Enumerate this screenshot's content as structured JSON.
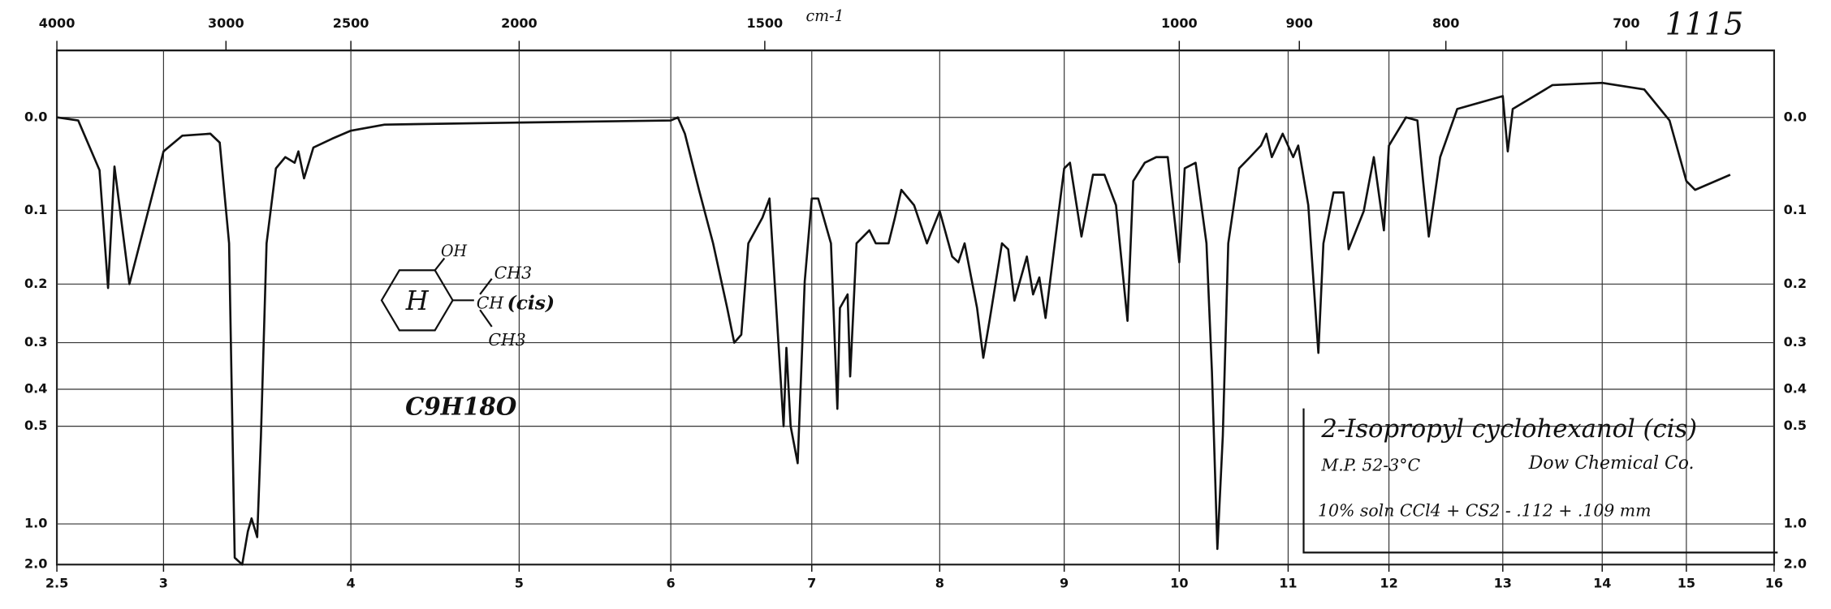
{
  "chart_data": {
    "type": "line",
    "title": "2-Isopropyl cyclohexanol (cis)",
    "annotations": [
      "M.P. 52-3°C",
      "Dow Chemical Co.",
      "10% soln CCl4 + CS2 - .112 + .109 mm",
      "C9H18O",
      "1115"
    ],
    "structure_labels": [
      "H",
      "OH",
      "CH3",
      "CH",
      "(cis)",
      "CH3"
    ],
    "x2label": "cm-1",
    "xlim": [
      2.5,
      16
    ],
    "xticks": [
      2.5,
      3,
      4,
      5,
      6,
      7,
      8,
      9,
      10,
      11,
      12,
      13,
      14,
      15,
      16
    ],
    "x2ticks": [
      4000,
      3000,
      2500,
      2000,
      1500,
      1000,
      900,
      800,
      700
    ],
    "ylim": [
      -0.06,
      2.0
    ],
    "yscale": "absorbance",
    "yticks": [
      {
        "value": 0,
        "label": "0.0"
      },
      0.1,
      0.2,
      0.3,
      0.4,
      0.5,
      {
        "value": 1,
        "label": "1.0"
      },
      {
        "value": 2,
        "label": "2.0"
      }
    ],
    "grid": true,
    "series": [
      {
        "color": "#111111",
        "x": [
          2.5,
          2.6,
          2.7,
          2.74,
          2.77,
          2.84,
          3.0,
          3.1,
          3.25,
          3.3,
          3.35,
          3.38,
          3.42,
          3.45,
          3.47,
          3.5,
          3.52,
          3.55,
          3.6,
          3.65,
          3.7,
          3.72,
          3.75,
          3.8,
          3.9,
          4.0,
          4.2,
          5.0,
          6.0,
          6.05,
          6.1,
          6.2,
          6.3,
          6.4,
          6.45,
          6.5,
          6.55,
          6.65,
          6.7,
          6.8,
          6.82,
          6.85,
          6.9,
          6.95,
          7.0,
          7.05,
          7.15,
          7.2,
          7.22,
          7.28,
          7.3,
          7.35,
          7.45,
          7.5,
          7.6,
          7.65,
          7.7,
          7.8,
          7.9,
          8.0,
          8.1,
          8.15,
          8.2,
          8.3,
          8.35,
          8.4,
          8.5,
          8.55,
          8.6,
          8.7,
          8.75,
          8.8,
          8.85,
          8.95,
          9.0,
          9.05,
          9.15,
          9.25,
          9.35,
          9.45,
          9.55,
          9.6,
          9.7,
          9.8,
          9.9,
          10.0,
          10.05,
          10.15,
          10.25,
          10.3,
          10.35,
          10.4,
          10.45,
          10.55,
          10.65,
          10.75,
          10.8,
          10.85,
          10.95,
          11.05,
          11.1,
          11.2,
          11.3,
          11.35,
          11.45,
          11.55,
          11.6,
          11.75,
          11.85,
          11.95,
          12.0,
          12.15,
          12.25,
          12.3,
          12.35,
          12.45,
          12.6,
          13.0,
          13.05,
          13.1,
          13.5,
          14.0,
          14.5,
          14.8,
          15.0,
          15.1,
          15.5
        ],
        "values": [
          0,
          0.003,
          0.054,
          0.206,
          0.05,
          0.2,
          0.034,
          0.018,
          0.016,
          0.025,
          0.142,
          1.6,
          2.0,
          1.08,
          0.95,
          1.15,
          0.53,
          0.142,
          0.052,
          0.04,
          0.046,
          0.034,
          0.063,
          0.03,
          0.021,
          0.013,
          0.007,
          0.005,
          0.003,
          0,
          0.016,
          0.076,
          0.142,
          0.238,
          0.3,
          0.285,
          0.142,
          0.109,
          0.086,
          0.5,
          0.31,
          0.5,
          0.63,
          0.196,
          0.086,
          0.086,
          0.142,
          0.45,
          0.238,
          0.216,
          0.37,
          0.142,
          0.125,
          0.142,
          0.142,
          0.109,
          0.076,
          0.094,
          0.142,
          0.101,
          0.16,
          0.168,
          0.142,
          0.238,
          0.33,
          0.26,
          0.142,
          0.15,
          0.226,
          0.16,
          0.216,
          0.19,
          0.255,
          0.109,
          0.052,
          0.046,
          0.133,
          0.059,
          0.059,
          0.094,
          0.26,
          0.066,
          0.046,
          0.04,
          0.04,
          0.168,
          0.052,
          0.046,
          0.142,
          0.36,
          1.35,
          0.53,
          0.142,
          0.052,
          0.04,
          0.028,
          0.016,
          0.04,
          0.016,
          0.04,
          0.028,
          0.094,
          0.32,
          0.142,
          0.079,
          0.079,
          0.15,
          0.101,
          0.04,
          0.125,
          0.028,
          0,
          0.003,
          0.066,
          0.133,
          0.04,
          -0.008,
          -0.02,
          0.034,
          -0.008,
          -0.03,
          -0.032,
          -0.026,
          0.003,
          0.066,
          0.076,
          0.059
        ]
      }
    ]
  }
}
